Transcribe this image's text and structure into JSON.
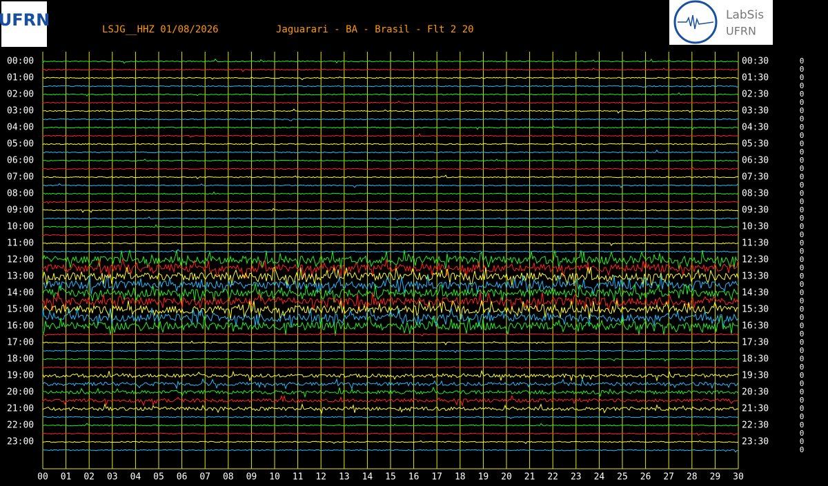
{
  "header": {
    "station": "LSJG__HHZ 01/08/2026",
    "location": "Jaguarari - BA - Brasil - Flt 2 20"
  },
  "logos": {
    "left": "UFRN",
    "right_top": "LabSis",
    "right_bottom": "UFRN"
  },
  "left_labels": [
    "00:00",
    "01:00",
    "02:00",
    "03:00",
    "04:00",
    "05:00",
    "06:00",
    "07:00",
    "08:00",
    "09:00",
    "10:00",
    "11:00",
    "12:00",
    "13:00",
    "14:00",
    "15:00",
    "16:00",
    "17:00",
    "18:00",
    "19:00",
    "20:00",
    "21:00",
    "22:00",
    "23:00"
  ],
  "right_labels": [
    "00:30",
    "01:30",
    "02:30",
    "03:30",
    "04:30",
    "05:30",
    "06:30",
    "07:30",
    "08:30",
    "09:30",
    "10:30",
    "11:30",
    "12:30",
    "13:30",
    "14:30",
    "15:30",
    "16:30",
    "17:30",
    "18:30",
    "19:30",
    "20:30",
    "21:30",
    "22:30",
    "23:30"
  ],
  "x_labels": [
    "00",
    "01",
    "02",
    "03",
    "04",
    "05",
    "06",
    "07",
    "08",
    "09",
    "10",
    "11",
    "12",
    "13",
    "14",
    "15",
    "16",
    "17",
    "18",
    "19",
    "20",
    "21",
    "22",
    "23",
    "24",
    "25",
    "26",
    "27",
    "28",
    "29",
    "30"
  ],
  "right_counts": [
    "0",
    "0",
    "0",
    "0",
    "0",
    "0",
    "0",
    "0",
    "0",
    "0",
    "0",
    "0",
    "0",
    "0",
    "0",
    "0",
    "0",
    "0",
    "0",
    "0",
    "0",
    "0",
    "0",
    "0",
    "0",
    "0",
    "0",
    "0",
    "0",
    "0",
    "0",
    "0",
    "0",
    "0",
    "0",
    "0",
    "0",
    "0",
    "0",
    "0",
    "0",
    "0",
    "0",
    "0",
    "0",
    "0",
    "0",
    "0"
  ]
}
